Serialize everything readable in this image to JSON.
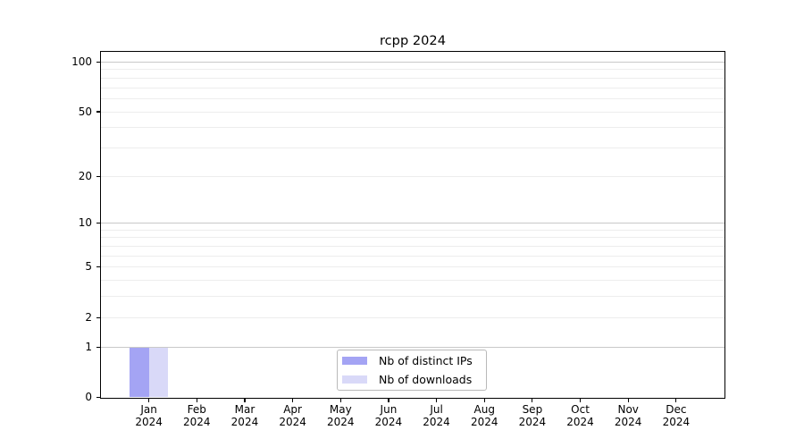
{
  "chart_data": {
    "type": "bar",
    "title": "rcpp 2024",
    "x": {
      "months": [
        "Jan",
        "Feb",
        "Mar",
        "Apr",
        "May",
        "Jun",
        "Jul",
        "Aug",
        "Sep",
        "Oct",
        "Nov",
        "Dec"
      ],
      "year": "2024"
    },
    "series": [
      {
        "name": "Nb of distinct IPs",
        "color": "#a4a4f4",
        "values": [
          1,
          0,
          0,
          0,
          0,
          0,
          0,
          0,
          0,
          0,
          0,
          0
        ]
      },
      {
        "name": "Nb of downloads",
        "color": "#d9d9f8",
        "values": [
          1,
          0,
          0,
          0,
          0,
          0,
          0,
          0,
          0,
          0,
          0,
          0
        ]
      }
    ],
    "y_axis": {
      "scale": "log10(1+y)",
      "tick_values": [
        0,
        1,
        2,
        5,
        10,
        20,
        50,
        100
      ],
      "major_gridlines": [
        1,
        10,
        100
      ],
      "minor_gridlines": [
        2,
        3,
        4,
        5,
        6,
        7,
        8,
        9,
        20,
        30,
        40,
        50,
        60,
        70,
        80,
        90
      ],
      "ylim": [
        0,
        113
      ]
    },
    "legend": {
      "position": "lower-center"
    },
    "grid": true,
    "colors": {
      "major_grid": "#c9c9c9",
      "minor_grid": "#ededed",
      "axis": "#000000",
      "text": "#000000",
      "legend_border": "#b9b9b9",
      "legend_bg": "#ffffff"
    }
  }
}
